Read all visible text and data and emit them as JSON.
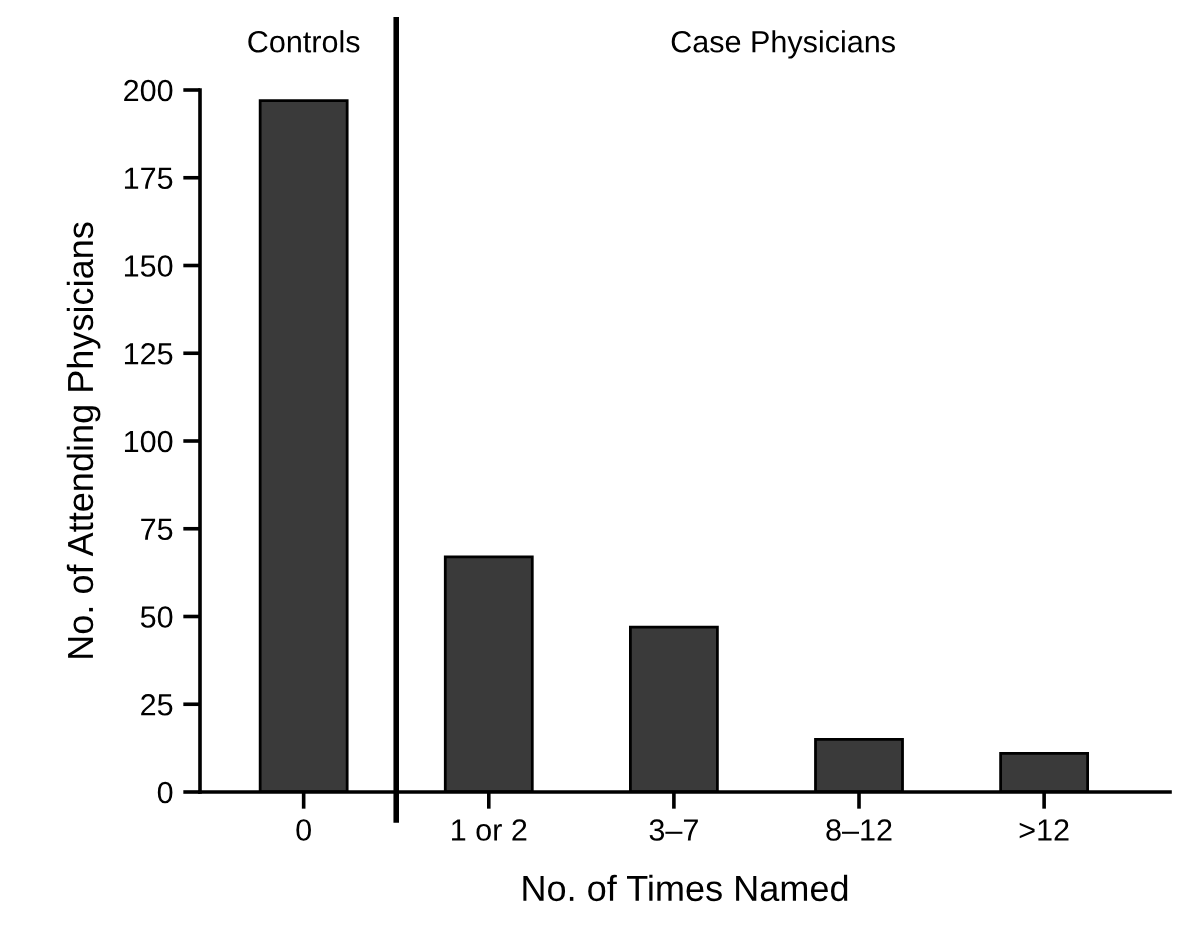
{
  "chart_data": {
    "type": "bar",
    "categories": [
      "0",
      "1 or 2",
      "3–7",
      "8–12",
      ">12"
    ],
    "values": [
      197,
      67,
      47,
      15,
      11
    ],
    "color": "#3a3a3a",
    "xlabel": "No. of Times Named",
    "ylabel": "No. of Attending Physicians",
    "ylim": [
      0,
      200
    ],
    "yticks": [
      0,
      25,
      50,
      75,
      100,
      125,
      150,
      175,
      200
    ],
    "grid": false,
    "annotations": [
      "Controls",
      "Case Physicians"
    ]
  }
}
